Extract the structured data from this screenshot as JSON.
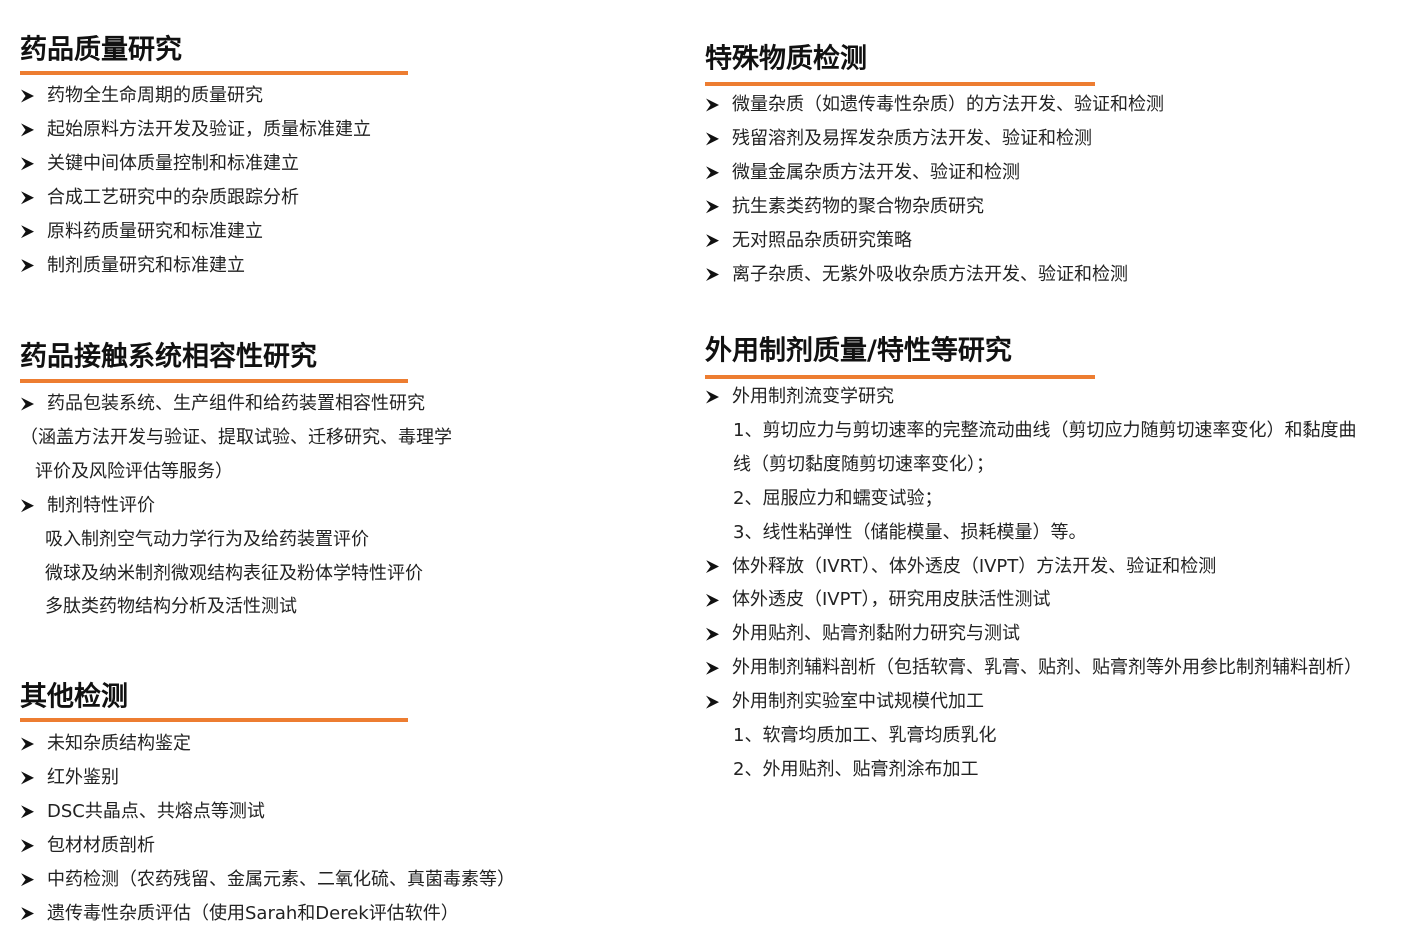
{
  "sections": [
    {
      "title": "药品质量研究",
      "items": [
        {
          "text": "药物全生命周期的质量研究"
        },
        {
          "text": "起始原料方法开发及验证，质量标准建立"
        },
        {
          "text": "关键中间体质量控制和标准建立"
        },
        {
          "text": "合成工艺研究中的杂质跟踪分析"
        },
        {
          "text": "原料药质量研究和标准建立"
        },
        {
          "text": "制剂质量研究和标准建立"
        }
      ]
    },
    {
      "title": "药品接触系统相容性研究",
      "items": [
        {
          "text": "药品包装系统、生产组件和给药装置相容性研究",
          "details": [
            "（涵盖方法开发与验证、提取试验、迁移研究、毒理学",
            "评价及风险评估等服务）"
          ]
        },
        {
          "text": "制剂特性评价",
          "details": [
            "吸入制剂空气动力学行为及给药装置评价",
            "微球及纳米制剂微观结构表征及粉体学特性评价",
            "多肽类药物结构分析及活性测试"
          ]
        }
      ]
    },
    {
      "title": "其他检测",
      "items": [
        {
          "text": "未知杂质结构鉴定"
        },
        {
          "text": "红外鉴别"
        },
        {
          "text": "DSC共晶点、共熔点等测试"
        },
        {
          "text": "包材材质剖析"
        },
        {
          "text": "中药检测（农药残留、金属元素、二氧化硫、真菌毒素等）"
        },
        {
          "text": "遗传毒性杂质评估（使用Sarah和Derek评估软件）"
        }
      ]
    },
    {
      "title": "特殊物质检测",
      "items": [
        {
          "text": "微量杂质（如遗传毒性杂质）的方法开发、验证和检测"
        },
        {
          "text": "残留溶剂及易挥发杂质方法开发、验证和检测"
        },
        {
          "text": "微量金属杂质方法开发、验证和检测"
        },
        {
          "text": "抗生素类药物的聚合物杂质研究"
        },
        {
          "text": "无对照品杂质研究策略"
        },
        {
          "text": "离子杂质、无紫外吸收杂质方法开发、验证和检测"
        }
      ]
    },
    {
      "title": "外用制剂质量/特性等研究",
      "items": [
        {
          "text": "外用制剂流变学研究",
          "details": [
            "1、剪切应力与剪切速率的完整流动曲线（剪切应力随剪切速率变化）和黏度曲",
            "线（剪切黏度随剪切速率变化）；",
            "2、屈服应力和蠕变试验；",
            "3、线性粘弹性（储能模量、损耗模量）等。"
          ]
        },
        {
          "text": "体外释放（IVRT）、体外透皮（IVPT）方法开发、验证和检测"
        },
        {
          "text": "体外透皮（IVPT），研究用皮肤活性测试"
        },
        {
          "text": "外用贴剂、贴膏剂黏附力研究与测试"
        },
        {
          "text": "外用制剂辅料剖析（包括软膏、乳膏、贴剂、贴膏剂等外用参比制剂辅料剖析）"
        },
        {
          "text": "外用制剂实验室中试规模代加工",
          "details": [
            "1、软膏均质加工、乳膏均质乳化",
            "2、外用贴剂、贴膏剂涂布加工"
          ]
        }
      ]
    }
  ]
}
